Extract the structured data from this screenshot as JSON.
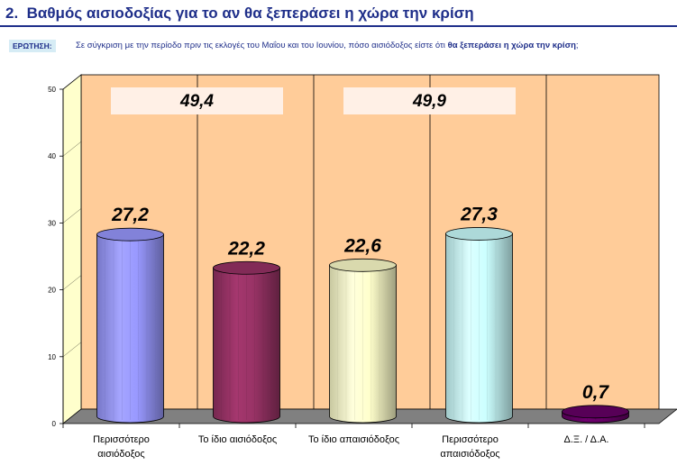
{
  "header": {
    "number": "2.",
    "title": "Βαθμός αισιοδοξίας για το αν θα ξεπεράσει η χώρα την κρίση"
  },
  "question": {
    "badge": "ΕΡΩΤΗΣΗ:",
    "text_plain": "Σε σύγκριση με την περίοδο πριν τις εκλογές του Μαΐου και του Ιουνίου, πόσο αισιόδοξος είστε ότι ",
    "text_bold": "θα ξεπεράσει η χώρα την κρίση",
    "text_end": ";"
  },
  "chart_data": {
    "type": "bar",
    "categories": [
      "Περισσότερο αισιόδοξος",
      "Το ίδιο αισιόδοξος",
      "Το ίδιο απαισιόδοξος",
      "Περισσότερο απαισιόδοξος",
      "Δ.Ξ. / Δ.Α."
    ],
    "category_lines": [
      [
        "Περισσότερο",
        "αισιόδοξος"
      ],
      [
        "Το ίδιο αισιόδοξος"
      ],
      [
        "Το ίδιο απαισιόδοξος"
      ],
      [
        "Περισσότερο",
        "απαισιόδοξος"
      ],
      [
        "Δ.Ξ. / Δ.Α."
      ]
    ],
    "values": [
      27.2,
      22.2,
      22.6,
      27.3,
      0.7
    ],
    "value_labels": [
      "27,2",
      "22,2",
      "22,6",
      "27,3",
      "0,7"
    ],
    "colors": [
      "#9999ff",
      "#993366",
      "#ffffcc",
      "#ccffff",
      "#660066"
    ],
    "group_totals": [
      {
        "label": "49,4",
        "covers": [
          0,
          1
        ]
      },
      {
        "label": "49,9",
        "covers": [
          2,
          3
        ]
      }
    ],
    "ylim": [
      0,
      50
    ],
    "yticks": [
      0,
      10,
      20,
      30,
      40,
      50
    ],
    "plot_background": "#ffcc99",
    "wall_color": "#ffffcc",
    "floor_color": "#808080",
    "xlabel": "",
    "ylabel": ""
  }
}
